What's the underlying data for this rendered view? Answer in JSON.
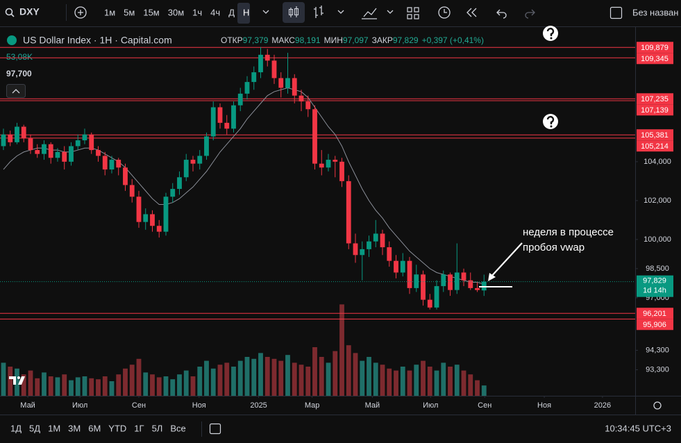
{
  "toolbar": {
    "symbol": "DXY",
    "intervals": [
      "1м",
      "5м",
      "15м",
      "30м",
      "1ч",
      "4ч",
      "Д",
      "Н"
    ],
    "layout_name": "Без назван"
  },
  "legend": {
    "title": "US Dollar Index · 1H · Capital.com",
    "ohlc": [
      {
        "label": "ОТКР",
        "value": "97,379"
      },
      {
        "label": "МАКС",
        "value": "98,191"
      },
      {
        "label": "МИН",
        "value": "97,097"
      },
      {
        "label": "ЗАКР",
        "value": "97,829"
      }
    ],
    "change": "+0,397 (+0,41%)",
    "volume": "53,08K",
    "indicator": "97,700"
  },
  "chart_data": {
    "type": "candlestick",
    "colors": {
      "up": "#089981",
      "down": "#f23645",
      "volume_up": "#1f6f68",
      "volume_down": "#7d2a2f"
    },
    "candles": [
      [
        104.8,
        105.7,
        104.6,
        105.4
      ],
      [
        105.4,
        105.6,
        104.8,
        105.0
      ],
      [
        105.0,
        106.0,
        104.9,
        105.8
      ],
      [
        105.8,
        105.9,
        105.0,
        105.2
      ],
      [
        105.2,
        105.4,
        104.4,
        104.6
      ],
      [
        104.6,
        104.9,
        104.2,
        104.4
      ],
      [
        104.4,
        105.1,
        104.1,
        104.9
      ],
      [
        104.9,
        105.0,
        103.9,
        104.2
      ],
      [
        104.2,
        104.7,
        104.0,
        104.5
      ],
      [
        104.5,
        104.8,
        103.6,
        104.0
      ],
      [
        104.0,
        105.0,
        103.8,
        104.8
      ],
      [
        104.8,
        105.4,
        104.6,
        105.1
      ],
      [
        105.1,
        105.7,
        104.9,
        105.4
      ],
      [
        105.4,
        105.5,
        104.4,
        104.6
      ],
      [
        104.6,
        104.8,
        104.0,
        104.3
      ],
      [
        104.3,
        104.5,
        103.3,
        103.6
      ],
      [
        103.6,
        104.3,
        103.4,
        104.1
      ],
      [
        104.1,
        104.2,
        103.3,
        103.7
      ],
      [
        103.7,
        103.9,
        102.5,
        102.8
      ],
      [
        102.8,
        103.1,
        101.9,
        102.2
      ],
      [
        102.2,
        102.5,
        100.6,
        100.9
      ],
      [
        100.9,
        101.6,
        100.5,
        101.3
      ],
      [
        101.3,
        101.5,
        100.4,
        100.7
      ],
      [
        100.7,
        101.0,
        100.1,
        100.4
      ],
      [
        100.4,
        102.4,
        100.2,
        102.2
      ],
      [
        102.2,
        102.9,
        101.9,
        102.6
      ],
      [
        102.6,
        103.5,
        102.3,
        103.2
      ],
      [
        103.2,
        104.4,
        103.0,
        104.1
      ],
      [
        104.1,
        104.3,
        103.5,
        103.9
      ],
      [
        103.9,
        104.6,
        103.6,
        104.3
      ],
      [
        104.3,
        105.5,
        104.1,
        105.3
      ],
      [
        105.3,
        107.1,
        105.1,
        106.8
      ],
      [
        106.8,
        107.0,
        105.7,
        106.0
      ],
      [
        106.0,
        106.4,
        105.4,
        105.7
      ],
      [
        105.7,
        107.1,
        105.5,
        106.9
      ],
      [
        106.9,
        107.8,
        106.6,
        107.5
      ],
      [
        107.5,
        108.4,
        107.2,
        108.1
      ],
      [
        108.1,
        108.9,
        107.7,
        108.6
      ],
      [
        108.6,
        109.9,
        108.3,
        109.5
      ],
      [
        109.5,
        109.8,
        108.9,
        109.2
      ],
      [
        109.2,
        109.5,
        108.0,
        108.3
      ],
      [
        108.3,
        108.6,
        107.3,
        107.8
      ],
      [
        107.8,
        109.6,
        107.5,
        108.3
      ],
      [
        108.3,
        108.5,
        107.0,
        107.4
      ],
      [
        107.4,
        107.7,
        106.6,
        107.1
      ],
      [
        107.1,
        107.4,
        106.3,
        106.7
      ],
      [
        106.7,
        106.9,
        103.6,
        103.9
      ],
      [
        103.9,
        104.6,
        103.3,
        103.7
      ],
      [
        103.7,
        104.4,
        103.5,
        104.1
      ],
      [
        104.1,
        104.3,
        103.2,
        104.0
      ],
      [
        104.0,
        104.2,
        102.7,
        103.0
      ],
      [
        103.0,
        103.3,
        99.5,
        99.8
      ],
      [
        99.8,
        100.3,
        98.8,
        99.2
      ],
      [
        99.2,
        99.9,
        97.9,
        99.5
      ],
      [
        99.5,
        100.2,
        99.1,
        99.9
      ],
      [
        99.9,
        101.0,
        99.6,
        100.3
      ],
      [
        100.3,
        100.5,
        99.2,
        99.6
      ],
      [
        99.6,
        99.9,
        98.6,
        98.9
      ],
      [
        98.9,
        99.2,
        98.0,
        98.3
      ],
      [
        98.3,
        99.3,
        98.1,
        98.9
      ],
      [
        98.9,
        99.1,
        97.2,
        97.5
      ],
      [
        97.5,
        98.7,
        97.3,
        98.2
      ],
      [
        98.2,
        98.4,
        96.6,
        96.9
      ],
      [
        96.9,
        97.2,
        96.4,
        96.5
      ],
      [
        96.5,
        97.9,
        96.4,
        97.6
      ],
      [
        97.6,
        98.4,
        97.3,
        98.2
      ],
      [
        98.2,
        98.3,
        97.1,
        97.4
      ],
      [
        97.4,
        99.8,
        97.2,
        98.3
      ],
      [
        98.3,
        98.5,
        97.6,
        97.9
      ],
      [
        97.9,
        98.3,
        97.4,
        97.5
      ],
      [
        97.5,
        97.8,
        97.3,
        97.4
      ],
      [
        97.379,
        98.191,
        97.097,
        97.829
      ]
    ],
    "volume": {
      "values": [
        170,
        150,
        140,
        110,
        130,
        90,
        120,
        100,
        95,
        110,
        80,
        95,
        100,
        90,
        85,
        100,
        75,
        110,
        140,
        160,
        190,
        120,
        110,
        95,
        100,
        85,
        110,
        130,
        100,
        150,
        180,
        140,
        160,
        170,
        150,
        180,
        200,
        190,
        220,
        200,
        190,
        180,
        210,
        170,
        160,
        150,
        250,
        200,
        170,
        230,
        470,
        260,
        220,
        180,
        200,
        170,
        160,
        140,
        130,
        150,
        130,
        160,
        180,
        150,
        130,
        170,
        150,
        160,
        130,
        110,
        80,
        53.08
      ],
      "vlim": [
        0,
        500
      ]
    },
    "ma": {
      "color": "#8b8f99",
      "values": [
        103.6,
        104.0,
        104.3,
        104.5,
        104.6,
        104.7,
        104.7,
        104.6,
        104.6,
        104.5,
        104.5,
        104.6,
        104.7,
        104.7,
        104.6,
        104.4,
        104.2,
        104.0,
        103.7,
        103.3,
        102.9,
        102.5,
        102.1,
        101.8,
        101.8,
        101.9,
        102.1,
        102.4,
        102.7,
        103.1,
        103.5,
        104.0,
        104.5,
        104.9,
        105.3,
        105.7,
        106.2,
        106.6,
        107.0,
        107.4,
        107.6,
        107.7,
        107.8,
        107.7,
        107.6,
        107.3,
        106.8,
        106.3,
        105.8,
        105.4,
        104.8,
        104.0,
        103.3,
        102.6,
        102.0,
        101.5,
        101.1,
        100.6,
        100.2,
        99.8,
        99.4,
        99.1,
        98.8,
        98.5,
        98.3,
        98.2,
        98.1,
        98.0,
        97.9,
        97.8,
        97.8,
        97.7
      ]
    },
    "ylim": [
      91.96,
      110.96
    ],
    "yticks": [
      {
        "value": 104,
        "label": "104,000"
      },
      {
        "value": 102,
        "label": "102,000"
      },
      {
        "value": 100,
        "label": "100,000"
      },
      {
        "value": 98.5,
        "label": "98,500"
      },
      {
        "value": 97,
        "label": "97,000"
      },
      {
        "value": 94.3,
        "label": "94,300"
      },
      {
        "value": 93.3,
        "label": "93,300"
      }
    ],
    "xlim": [
      -0.51,
      93.33
    ],
    "xticks": [
      {
        "value": 3.6,
        "label": "Май"
      },
      {
        "value": 11.3,
        "label": "Июл"
      },
      {
        "value": 20,
        "label": "Сен"
      },
      {
        "value": 28.9,
        "label": "Ноя"
      },
      {
        "value": 37.7,
        "label": "2025"
      },
      {
        "value": 45.6,
        "label": "Мар"
      },
      {
        "value": 54.5,
        "label": "Май"
      },
      {
        "value": 63.1,
        "label": "Июл"
      },
      {
        "value": 71.1,
        "label": "Сен"
      },
      {
        "value": 79.9,
        "label": "Ноя"
      },
      {
        "value": 88.5,
        "label": "2026"
      }
    ],
    "levels": [
      {
        "value": 109.879,
        "label": "109,879"
      },
      {
        "value": 109.345,
        "label": "109,345"
      },
      {
        "value": 107.235,
        "label": "107,235"
      },
      {
        "value": 107.139,
        "label": "107,139"
      },
      {
        "value": 105.381,
        "label": "105,381"
      },
      {
        "value": 105.214,
        "label": "105,214"
      },
      {
        "value": 96.201,
        "label": "96,201"
      },
      {
        "value": 95.906,
        "label": "95,906"
      }
    ],
    "level_color": "#f23645",
    "last_price": {
      "value": 97.829,
      "label": "97,829",
      "countdown": "1d 14h"
    },
    "annotation": [
      "неделя в процессе",
      "пробоя vwap"
    ]
  },
  "bottom_bar": {
    "ranges": [
      "1Д",
      "5Д",
      "1М",
      "3М",
      "6М",
      "YTD",
      "1Г",
      "5Л",
      "Все"
    ],
    "clock": "10:34:45 UTC+3"
  }
}
